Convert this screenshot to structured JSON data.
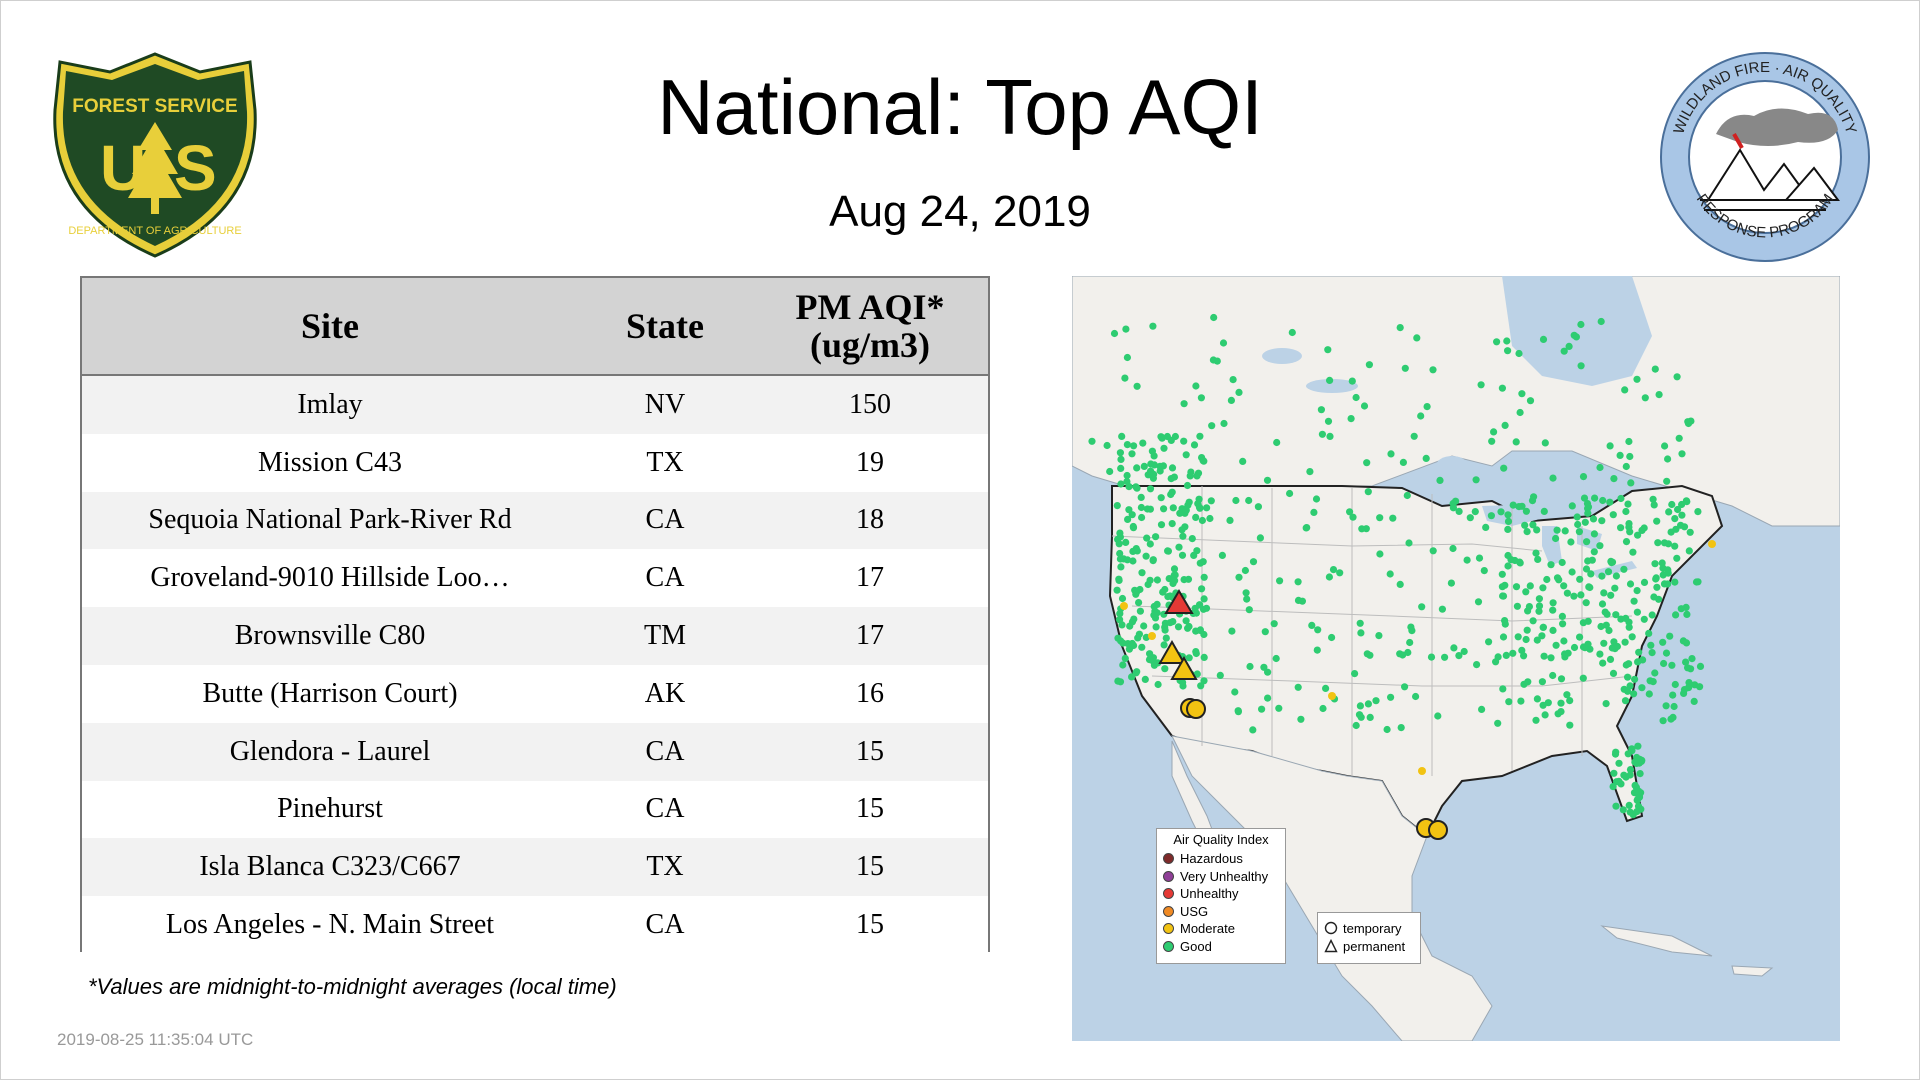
{
  "header": {
    "title": "National: Top AQI",
    "date": "Aug 24, 2019"
  },
  "logos": {
    "forest_service": {
      "top_text": "FOREST SERVICE",
      "letters": "US",
      "bottom_text": "DEPARTMENT OF AGRICULTURE"
    },
    "wildland": {
      "text": "WILDLAND FIRE · AIR QUALITY · RESPONSE PROGRAM"
    }
  },
  "table": {
    "headers": {
      "site": "Site",
      "state": "State",
      "aqi_line1": "PM AQI*",
      "aqi_line2": "(ug/m3)"
    },
    "rows": [
      {
        "site": "Imlay",
        "state": "NV",
        "aqi": "150"
      },
      {
        "site": "Mission C43",
        "state": "TX",
        "aqi": "19"
      },
      {
        "site": "Sequoia National Park-River Rd",
        "state": "CA",
        "aqi": "18"
      },
      {
        "site": "Groveland-9010 Hillside Loo…",
        "state": "CA",
        "aqi": "17"
      },
      {
        "site": "Brownsville C80",
        "state": "TM",
        "aqi": "17"
      },
      {
        "site": "Butte (Harrison Court)",
        "state": "AK",
        "aqi": "16"
      },
      {
        "site": "Glendora - Laurel",
        "state": "CA",
        "aqi": "15"
      },
      {
        "site": "Pinehurst",
        "state": "CA",
        "aqi": "15"
      },
      {
        "site": "Isla Blanca C323/C667",
        "state": "TX",
        "aqi": "15"
      },
      {
        "site": "Los Angeles - N. Main Street",
        "state": "CA",
        "aqi": "15"
      }
    ]
  },
  "footnote": "*Values are midnight-to-midnight averages (local time)",
  "timestamp": "2019-08-25 11:35:04 UTC",
  "map": {
    "legend_aqi": {
      "title": "Air Quality Index",
      "items": [
        {
          "label": "Hazardous",
          "color": "#7e2a2a"
        },
        {
          "label": "Very Unhealthy",
          "color": "#8f3f97"
        },
        {
          "label": "Unhealthy",
          "color": "#e53935"
        },
        {
          "label": "USG",
          "color": "#f08a24"
        },
        {
          "label": "Moderate",
          "color": "#f2c312"
        },
        {
          "label": "Good",
          "color": "#2ecc71"
        }
      ]
    },
    "legend_shape": {
      "temporary": "temporary",
      "permanent": "permanent"
    },
    "colors": {
      "water": "#bcd2e6",
      "land": "#f2f0ec",
      "good": "#2ecc71",
      "moderate": "#f2c312",
      "unhealthy": "#e53935"
    }
  }
}
